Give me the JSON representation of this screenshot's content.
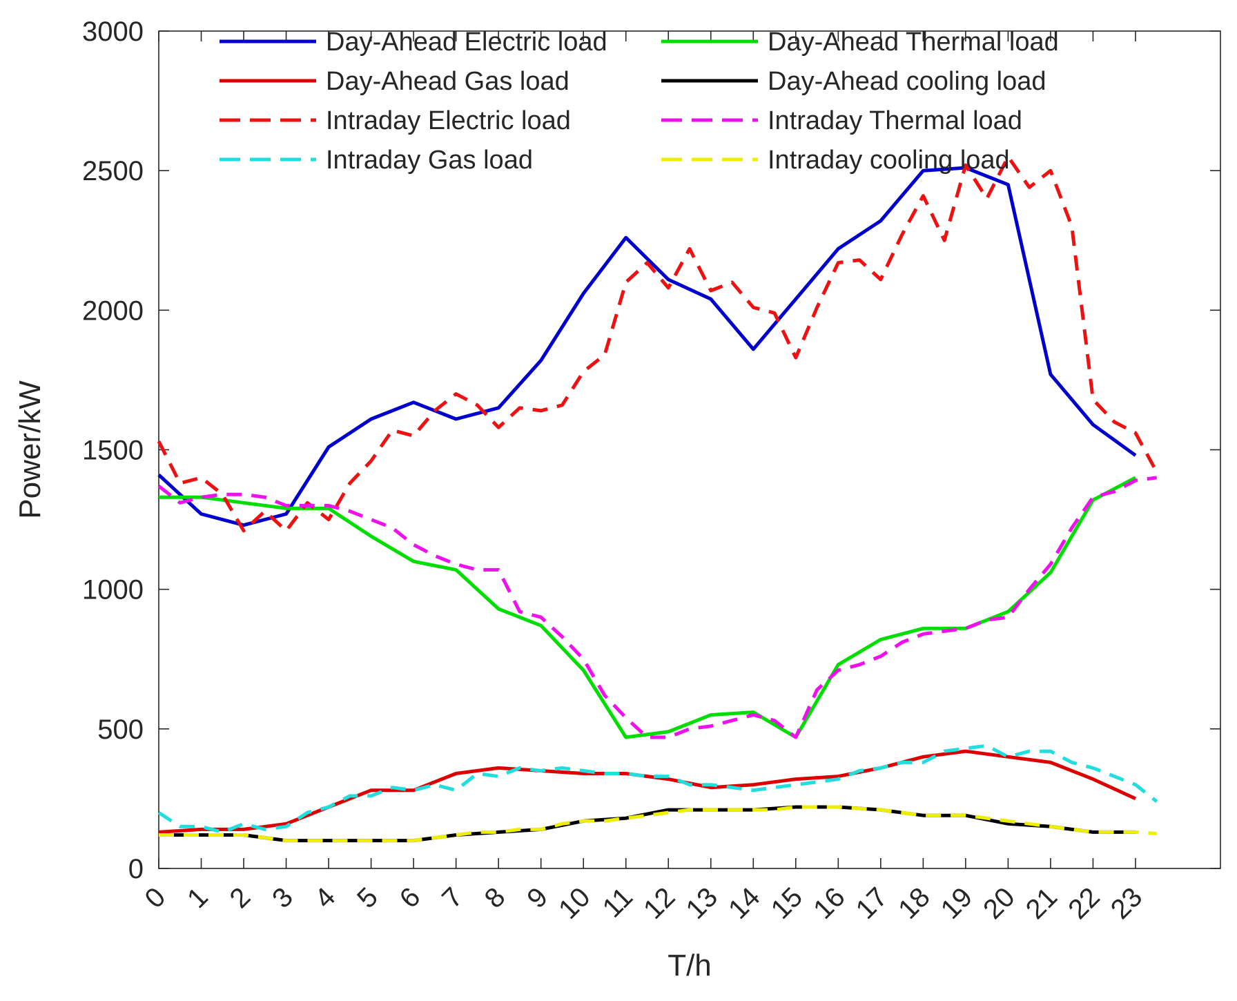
{
  "chart_data": {
    "type": "line",
    "title": "",
    "xlabel": "T/h",
    "ylabel": "Power/kW",
    "xlim": [
      0,
      25
    ],
    "ylim": [
      0,
      3000
    ],
    "yticks": [
      0,
      500,
      1000,
      1500,
      2000,
      2500,
      3000
    ],
    "xtick_labels": [
      "0",
      "1",
      "2",
      "3",
      "4",
      "5",
      "6",
      "7",
      "8",
      "9",
      "10",
      "11",
      "12",
      "13",
      "14",
      "15",
      "16",
      "17",
      "18",
      "19",
      "20",
      "21",
      "22",
      "23"
    ],
    "grid": false,
    "legend_position": "top",
    "series": [
      {
        "name": "Day-Ahead Electric load",
        "color": "#0000cc",
        "style": "solid",
        "x": [
          0,
          1,
          2,
          3,
          4,
          5,
          6,
          7,
          8,
          9,
          10,
          11,
          12,
          13,
          14,
          15,
          16,
          17,
          18,
          19,
          20,
          21,
          22,
          23
        ],
        "values": [
          1410,
          1270,
          1230,
          1270,
          1510,
          1610,
          1670,
          1610,
          1650,
          1820,
          2060,
          2260,
          2110,
          2040,
          1860,
          2040,
          2220,
          2320,
          2500,
          2510,
          2450,
          1770,
          1590,
          1480
        ]
      },
      {
        "name": "Day-Ahead Thermal load",
        "color": "#00dd00",
        "style": "solid",
        "x": [
          0,
          1,
          2,
          3,
          4,
          5,
          6,
          7,
          8,
          9,
          10,
          11,
          12,
          13,
          14,
          15,
          16,
          17,
          18,
          19,
          20,
          21,
          22,
          23
        ],
        "values": [
          1330,
          1330,
          1310,
          1290,
          1290,
          1190,
          1100,
          1070,
          930,
          870,
          710,
          470,
          490,
          550,
          560,
          470,
          730,
          820,
          860,
          860,
          920,
          1060,
          1320,
          1400
        ]
      },
      {
        "name": "Day-Ahead Gas load",
        "color": "#dd0000",
        "style": "solid",
        "x": [
          0,
          1,
          2,
          3,
          4,
          5,
          6,
          7,
          8,
          9,
          10,
          11,
          12,
          13,
          14,
          15,
          16,
          17,
          18,
          19,
          20,
          21,
          22,
          23
        ],
        "values": [
          130,
          140,
          140,
          160,
          220,
          280,
          280,
          340,
          360,
          350,
          340,
          340,
          320,
          290,
          300,
          320,
          330,
          360,
          400,
          420,
          400,
          380,
          320,
          250
        ]
      },
      {
        "name": "Day-Ahead cooling load",
        "color": "#000000",
        "style": "solid",
        "x": [
          0,
          1,
          2,
          3,
          4,
          5,
          6,
          7,
          8,
          9,
          10,
          11,
          12,
          13,
          14,
          15,
          16,
          17,
          18,
          19,
          20,
          21,
          22,
          23
        ],
        "values": [
          120,
          120,
          120,
          100,
          100,
          100,
          100,
          120,
          130,
          140,
          170,
          180,
          210,
          210,
          210,
          220,
          220,
          210,
          190,
          190,
          160,
          150,
          130,
          130
        ]
      },
      {
        "name": "Intraday Electric load",
        "color": "#ee1111",
        "style": "dashed",
        "x": [
          0,
          0.5,
          1,
          1.5,
          2,
          2.5,
          3,
          3.5,
          4,
          4.5,
          5,
          5.5,
          6,
          6.5,
          7,
          7.5,
          8,
          8.5,
          9,
          9.5,
          10,
          10.5,
          11,
          11.5,
          12,
          12.5,
          13,
          13.5,
          14,
          14.5,
          15,
          15.5,
          16,
          16.5,
          17,
          17.5,
          18,
          18.5,
          19,
          19.5,
          20,
          20.5,
          21,
          21.5,
          22,
          22.5,
          23,
          23.5
        ],
        "values": [
          1530,
          1380,
          1400,
          1340,
          1210,
          1280,
          1210,
          1310,
          1250,
          1380,
          1460,
          1570,
          1550,
          1640,
          1700,
          1660,
          1580,
          1650,
          1640,
          1660,
          1780,
          1840,
          2100,
          2170,
          2080,
          2220,
          2070,
          2100,
          2010,
          1990,
          1830,
          2010,
          2170,
          2180,
          2110,
          2270,
          2410,
          2250,
          2520,
          2400,
          2550,
          2440,
          2500,
          2300,
          1680,
          1600,
          1560,
          1420
        ]
      },
      {
        "name": "Intraday Thermal load",
        "color": "#ee11ee",
        "style": "dashed",
        "x": [
          0,
          0.5,
          1,
          1.5,
          2,
          2.5,
          3,
          3.5,
          4,
          4.5,
          5,
          5.5,
          6,
          6.5,
          7,
          7.5,
          8,
          8.5,
          9,
          9.5,
          10,
          10.5,
          11,
          11.5,
          12,
          12.5,
          13,
          13.5,
          14,
          14.5,
          15,
          15.5,
          16,
          16.5,
          17,
          17.5,
          18,
          18.5,
          19,
          19.5,
          20,
          20.5,
          21,
          21.5,
          22,
          22.5,
          23,
          23.5
        ],
        "values": [
          1370,
          1310,
          1330,
          1340,
          1340,
          1330,
          1300,
          1300,
          1300,
          1280,
          1250,
          1220,
          1160,
          1120,
          1090,
          1070,
          1070,
          920,
          900,
          830,
          750,
          620,
          540,
          470,
          470,
          500,
          510,
          530,
          550,
          530,
          470,
          640,
          710,
          730,
          760,
          810,
          840,
          850,
          860,
          890,
          900,
          1000,
          1090,
          1220,
          1330,
          1350,
          1390,
          1400
        ]
      },
      {
        "name": "Intraday Gas load",
        "color": "#22dddd",
        "style": "dashed",
        "x": [
          0,
          0.5,
          1,
          1.5,
          2,
          2.5,
          3,
          3.5,
          4,
          4.5,
          5,
          5.5,
          6,
          6.5,
          7,
          7.5,
          8,
          8.5,
          9,
          9.5,
          10,
          10.5,
          11,
          11.5,
          12,
          12.5,
          13,
          13.5,
          14,
          14.5,
          15,
          15.5,
          16,
          16.5,
          17,
          17.5,
          18,
          18.5,
          19,
          19.5,
          20,
          20.5,
          21,
          21.5,
          22,
          22.5,
          23,
          23.5
        ],
        "values": [
          200,
          150,
          150,
          130,
          160,
          140,
          150,
          200,
          220,
          260,
          260,
          290,
          280,
          300,
          280,
          340,
          330,
          360,
          350,
          360,
          350,
          340,
          340,
          330,
          330,
          300,
          300,
          290,
          280,
          290,
          300,
          310,
          320,
          350,
          360,
          380,
          380,
          420,
          430,
          440,
          400,
          420,
          420,
          380,
          360,
          330,
          300,
          240
        ]
      },
      {
        "name": "Intraday cooling load",
        "color": "#eeee00",
        "style": "dashed",
        "x": [
          0,
          0.5,
          1,
          1.5,
          2,
          2.5,
          3,
          3.5,
          4,
          4.5,
          5,
          5.5,
          6,
          6.5,
          7,
          7.5,
          8,
          8.5,
          9,
          9.5,
          10,
          10.5,
          11,
          11.5,
          12,
          12.5,
          13,
          13.5,
          14,
          14.5,
          15,
          15.5,
          16,
          16.5,
          17,
          17.5,
          18,
          18.5,
          19,
          19.5,
          20,
          20.5,
          21,
          21.5,
          22,
          22.5,
          23,
          23.5
        ],
        "values": [
          120,
          120,
          120,
          120,
          120,
          110,
          100,
          100,
          100,
          100,
          100,
          100,
          100,
          110,
          120,
          130,
          130,
          140,
          140,
          160,
          170,
          170,
          180,
          190,
          200,
          210,
          210,
          210,
          210,
          210,
          220,
          220,
          220,
          215,
          210,
          200,
          190,
          190,
          190,
          180,
          170,
          160,
          150,
          140,
          130,
          130,
          130,
          125
        ]
      }
    ]
  }
}
